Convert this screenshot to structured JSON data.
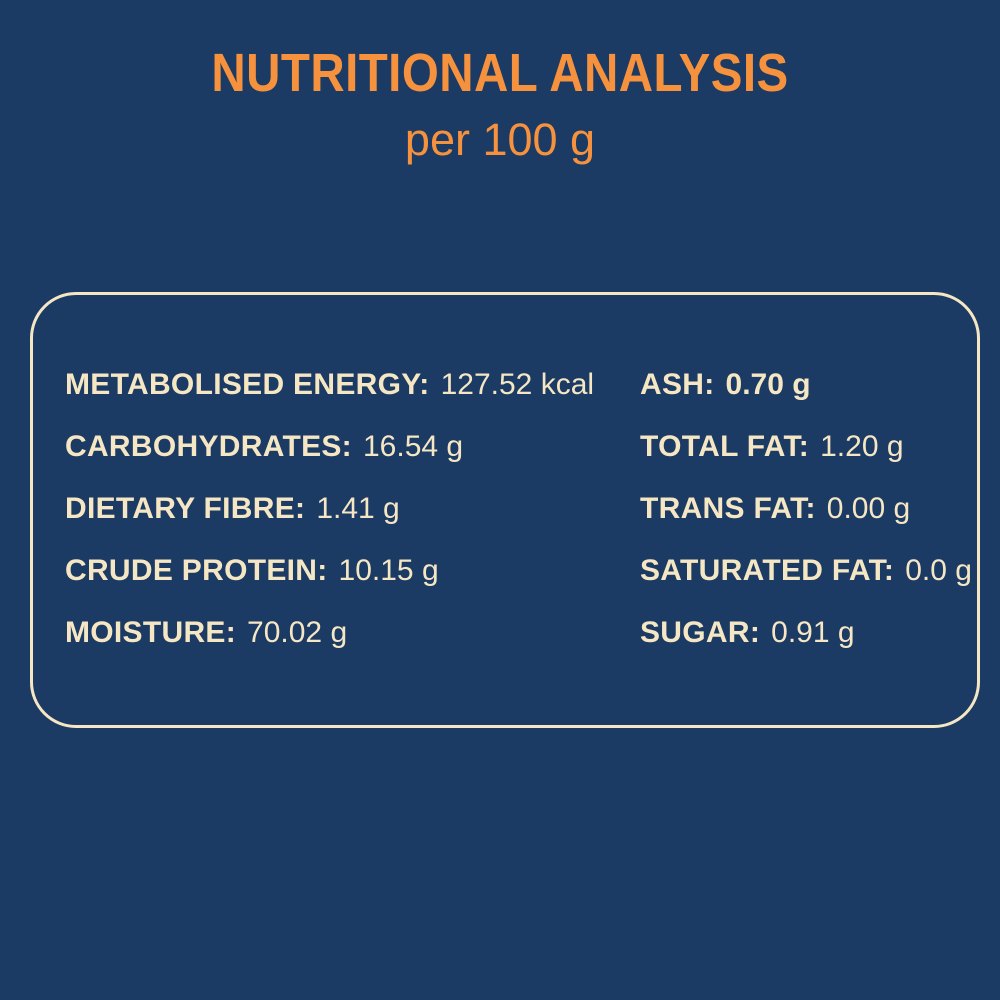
{
  "colors": {
    "background": "#1b3a64",
    "accent_orange": "#f6923e",
    "cream": "#f6e7c4"
  },
  "header": {
    "title": "NUTRITIONAL ANALYSIS",
    "subtitle": "per 100 g"
  },
  "panel": {
    "left_column": [
      {
        "label": "METABOLISED ENERGY:",
        "value": "127.52 kcal",
        "value_bold": false
      },
      {
        "label": "CARBOHYDRATES:",
        "value": "16.54 g",
        "value_bold": false
      },
      {
        "label": "DIETARY FIBRE:",
        "value": "1.41 g",
        "value_bold": false
      },
      {
        "label": "CRUDE PROTEIN:",
        "value": "10.15 g",
        "value_bold": false
      },
      {
        "label": "MOISTURE:",
        "value": "70.02 g",
        "value_bold": false
      }
    ],
    "right_column": [
      {
        "label": "ASH:",
        "value": "0.70 g",
        "value_bold": true
      },
      {
        "label": "TOTAL FAT:",
        "value": "1.20 g",
        "value_bold": false
      },
      {
        "label": "TRANS FAT:",
        "value": "0.00 g",
        "value_bold": false
      },
      {
        "label": "SATURATED FAT:",
        "value": "0.0 g",
        "value_bold": false
      },
      {
        "label": "SUGAR:",
        "value": "0.91 g",
        "value_bold": false
      }
    ]
  }
}
